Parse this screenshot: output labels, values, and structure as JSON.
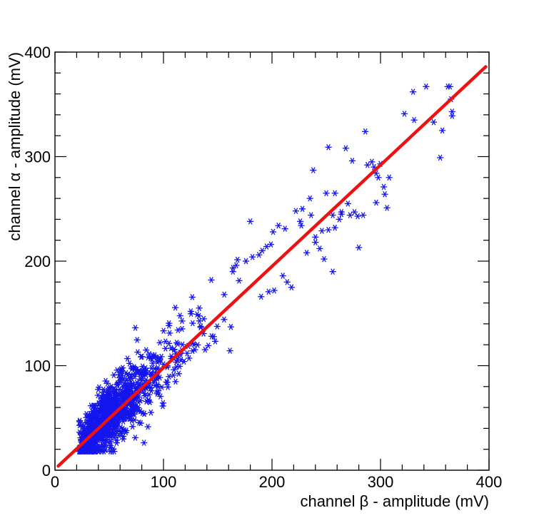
{
  "chart_data": {
    "type": "scatter",
    "title": "",
    "xlabel": "channel β - amplitude (mV)",
    "ylabel": "channel α - amplitude (mV)",
    "xlim": [
      0,
      400
    ],
    "ylim": [
      0,
      400
    ],
    "x_ticks": [
      "0",
      "100",
      "200",
      "300",
      "400"
    ],
    "y_ticks": [
      "0",
      "100",
      "200",
      "300",
      "400"
    ],
    "grid": false,
    "legend": "none",
    "colors": {
      "points": "#1515ee",
      "fit_line": "#ee1111",
      "frame": "#000000"
    },
    "fit_line": {
      "x": [
        3,
        397
      ],
      "y": [
        4,
        386
      ]
    },
    "series": [
      {
        "marker": "asterisk",
        "x": [
          330,
          362,
          364,
          342,
          322,
          331,
          349,
          357,
          355,
          366,
          366,
          365,
          252,
          268,
          286,
          274,
          250,
          238,
          270,
          258,
          262,
          264,
          272,
          288,
          292,
          296,
          294,
          300,
          306,
          304,
          303,
          308,
          276,
          279,
          280,
          256,
          258,
          235,
          227,
          226,
          240,
          246,
          252,
          244,
          264,
          222,
          228,
          236,
          206,
          212,
          201,
          199,
          195,
          188,
          191,
          182,
          167,
          176,
          164,
          156,
          180,
          232,
          240,
          248,
          256,
          284,
          296,
          298,
          218,
          214,
          210,
          202,
          190
        ],
        "y": [
          362,
          367,
          367,
          367,
          341,
          335,
          333,
          325,
          299,
          339,
          343,
          355,
          309,
          308,
          324,
          296,
          265,
          287,
          255,
          232,
          240,
          247,
          244,
          292,
          295,
          284,
          290,
          293,
          251,
          264,
          271,
          280,
          247,
          243,
          213,
          244,
          265,
          260,
          234,
          238,
          223,
          229,
          230,
          212,
          245,
          248,
          250,
          244,
          234,
          231,
          228,
          216,
          214,
          206,
          210,
          204,
          196,
          200,
          190,
          168,
          238,
          208,
          218,
          202,
          190,
          244,
          256,
          280,
          175,
          180,
          186,
          172,
          166
        ]
      }
    ],
    "cluster": {
      "count": 1000,
      "x_center": 55,
      "x_scale": 30,
      "x_min": 22,
      "x_max": 205,
      "slope": 0.97,
      "intercept": 3,
      "spread": 15
    }
  }
}
